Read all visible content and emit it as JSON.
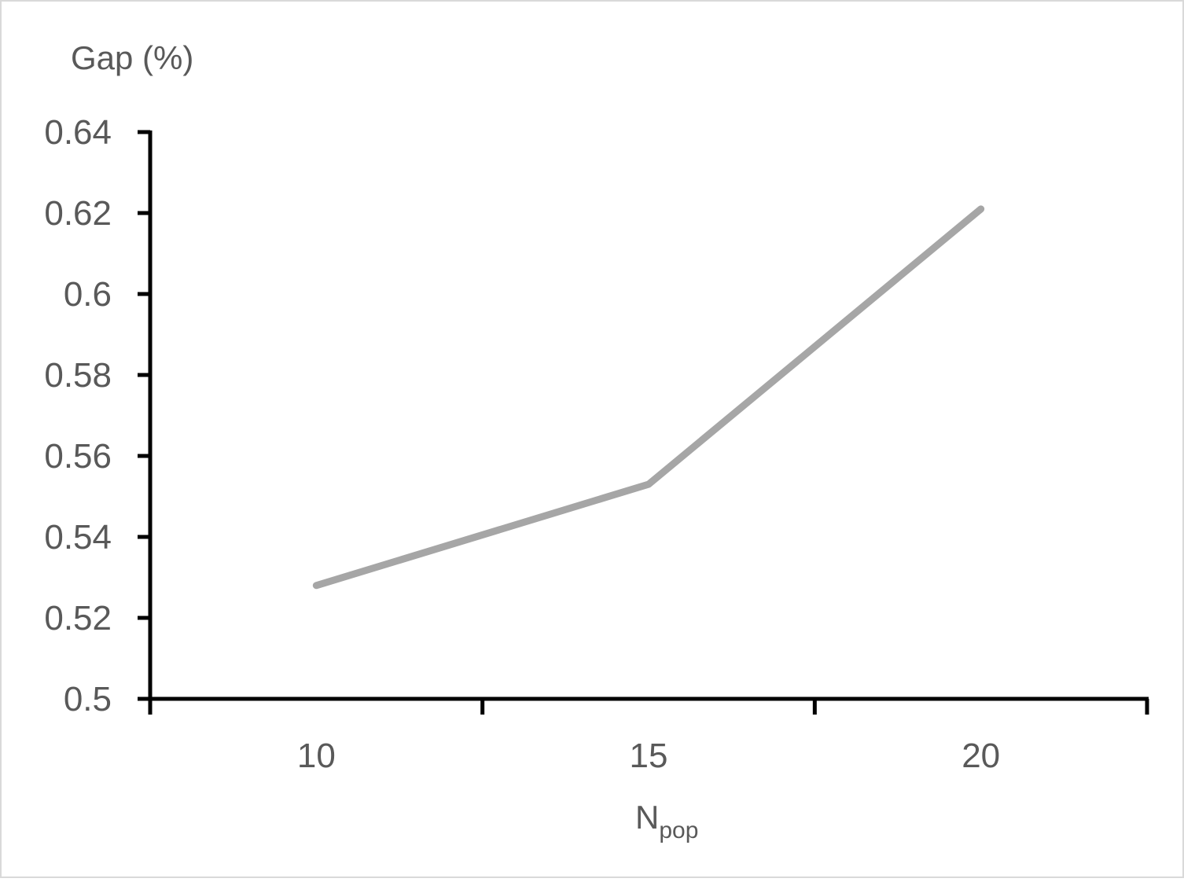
{
  "chart_data": {
    "type": "line",
    "title": "",
    "ylabel": "Gap (%)",
    "xlabel": {
      "main": "N",
      "subscript": "pop"
    },
    "categories": [
      "10",
      "15",
      "20"
    ],
    "series": [
      {
        "values": [
          0.528,
          0.553,
          0.621
        ],
        "color": "#a6a6a6"
      }
    ],
    "ylim": [
      0.5,
      0.64
    ],
    "yticks": [
      "0.5",
      "0.52",
      "0.54",
      "0.56",
      "0.58",
      "0.6",
      "0.62",
      "0.64"
    ],
    "grid": false,
    "legend": "none"
  },
  "colors": {
    "axis": "#000000",
    "text": "#595959",
    "border": "#d9d9d9"
  }
}
